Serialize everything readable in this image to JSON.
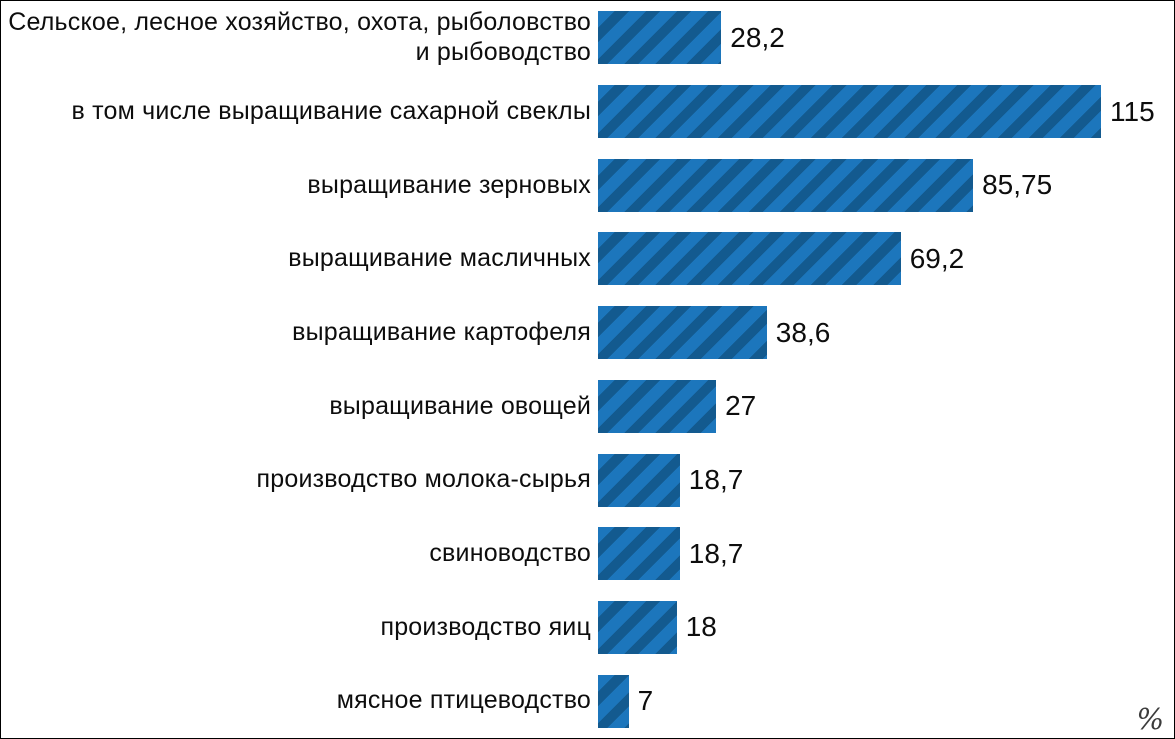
{
  "chart_data": {
    "type": "bar",
    "orientation": "horizontal",
    "title": "",
    "xlabel": "%",
    "ylabel": "",
    "xlim": [
      0,
      118
    ],
    "grid": false,
    "legend_position": "none",
    "categories": [
      "Сельское, лесное хозяйство, охота, рыболовство и рыбоводство",
      "в том числе выращивание сахарной свеклы",
      "выращивание зерновых",
      "выращивание масличных",
      "выращивание картофеля",
      "выращивание овощей",
      "производство молока-сырья",
      "свиноводство",
      "производство яиц",
      "мясное птицеводство"
    ],
    "values": [
      28.2,
      115,
      85.75,
      69.2,
      38.6,
      27,
      18.7,
      18.7,
      18,
      7
    ],
    "value_labels": [
      "28,2",
      "115",
      "85,75",
      "69,2",
      "38,6",
      "27",
      "18,7",
      "18,7",
      "18",
      "7"
    ],
    "bar_color": "#1c76bc",
    "hatch_color": "#135a8f",
    "unit_label": "%"
  }
}
